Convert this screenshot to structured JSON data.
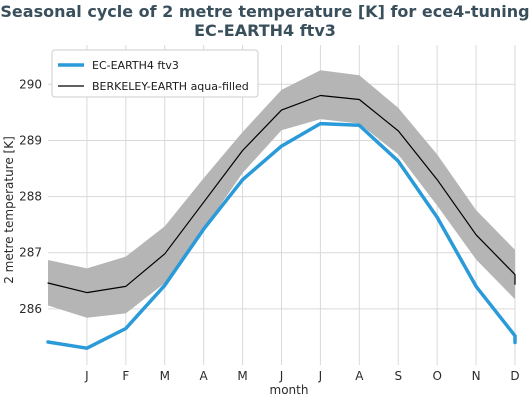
{
  "chart_data": {
    "type": "line",
    "title_line1": "Seasonal cycle of 2 metre temperature [K] for ece4-tuning",
    "title_line2": "EC-EARTH4 ftv3",
    "xlabel": "month",
    "ylabel": "2 metre temperature [K]",
    "categories": [
      "J",
      "F",
      "M",
      "A",
      "M",
      "J",
      "J",
      "A",
      "S",
      "O",
      "N",
      "D"
    ],
    "x": [
      0.0,
      1,
      2,
      3,
      4,
      5,
      6,
      7,
      8,
      9,
      10,
      11,
      12,
      12.0
    ],
    "xlim": [
      0.0,
      12.0
    ],
    "ylim": [
      285.0,
      290.7
    ],
    "yticks": [
      286,
      287,
      288,
      289,
      290
    ],
    "grid": true,
    "legend_position": "upper-left",
    "series": [
      {
        "name": "EC-EARTH4 ftv3",
        "color": "#2a9ad8",
        "values": [
          285.41,
          285.3,
          285.65,
          286.42,
          287.42,
          288.3,
          288.9,
          289.3,
          289.27,
          288.63,
          287.63,
          286.4,
          285.52,
          285.4
        ]
      },
      {
        "name": "BERKELEY-EARTH aqua-filled",
        "color": "#000000",
        "values": [
          286.46,
          286.29,
          286.4,
          286.98,
          287.9,
          288.82,
          289.54,
          289.8,
          289.73,
          289.17,
          288.3,
          287.32,
          286.61,
          286.44
        ],
        "band_upper": [
          286.87,
          286.72,
          286.93,
          287.47,
          288.33,
          289.15,
          289.9,
          290.25,
          290.16,
          289.58,
          288.75,
          287.76,
          287.05,
          286.87
        ],
        "band_lower": [
          286.06,
          285.84,
          285.92,
          286.46,
          287.42,
          288.42,
          289.18,
          289.38,
          289.3,
          288.75,
          287.84,
          286.88,
          286.17,
          286.0
        ],
        "band_color": "#b5b5b5"
      }
    ]
  }
}
